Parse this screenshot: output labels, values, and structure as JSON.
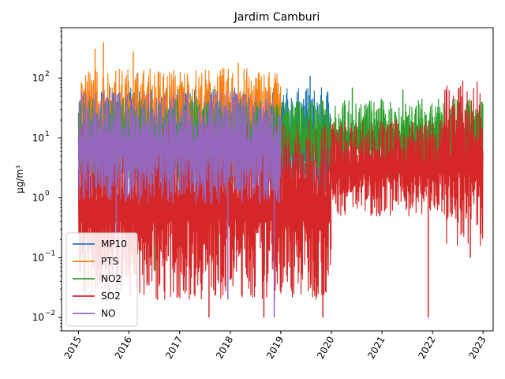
{
  "chart_data": {
    "type": "line",
    "title": "Jardim Camburi",
    "xlabel": "",
    "ylabel": "µg/m³",
    "yscale": "log",
    "ylim": [
      0.006,
      700
    ],
    "xlim": [
      "2014-09-01",
      "2023-03-15"
    ],
    "x_ticks": [
      "2015",
      "2016",
      "2017",
      "2018",
      "2019",
      "2020",
      "2021",
      "2022",
      "2023"
    ],
    "y_ticks": [
      {
        "value": 0.01,
        "base": "10",
        "exp": "−2"
      },
      {
        "value": 0.1,
        "base": "10",
        "exp": "−1"
      },
      {
        "value": 1,
        "base": "10",
        "exp": "0"
      },
      {
        "value": 10,
        "base": "10",
        "exp": "1"
      },
      {
        "value": 100,
        "base": "10",
        "exp": "2"
      }
    ],
    "grid": false,
    "legend": "lower-left",
    "series": [
      {
        "name": "MP10",
        "color": "#1f77b4",
        "segments": [
          {
            "start": "2015-01-01",
            "end": "2019-12-31",
            "low": 1.0,
            "high": 70,
            "spikes": [
              {
                "date": "2016-03-01",
                "value": 120
              },
              {
                "date": "2018-05-01",
                "value": 130
              },
              {
                "date": "2019-08-01",
                "value": 110
              }
            ]
          }
        ]
      },
      {
        "name": "PTS",
        "color": "#ff7f0e",
        "segments": [
          {
            "start": "2015-01-01",
            "end": "2018-12-31",
            "low": 1.5,
            "high": 150,
            "spikes": [
              {
                "date": "2015-07-01",
                "value": 400
              },
              {
                "date": "2015-05-01",
                "value": 310
              },
              {
                "date": "2016-02-01",
                "value": 280
              },
              {
                "date": "2018-03-01",
                "value": 180
              }
            ]
          }
        ]
      },
      {
        "name": "NO2",
        "color": "#2ca02c",
        "segments": [
          {
            "start": "2015-01-01",
            "end": "2022-12-31",
            "low": 2.0,
            "high": 45,
            "spikes": [
              {
                "date": "2016-07-10",
                "value": 0.06
              },
              {
                "date": "2020-06-01",
                "value": 70
              },
              {
                "date": "2021-06-01",
                "value": 65
              }
            ]
          }
        ]
      },
      {
        "name": "SO2",
        "color": "#d62728",
        "segments": [
          {
            "start": "2015-01-01",
            "end": "2019-12-31",
            "low": 0.02,
            "high": 20,
            "spikes": [
              {
                "date": "2017-08-01",
                "value": 0.01
              },
              {
                "date": "2018-09-01",
                "value": 0.01
              },
              {
                "date": "2019-11-01",
                "value": 0.01
              }
            ]
          },
          {
            "start": "2019-12-31",
            "end": "2022-03-15",
            "low": 0.5,
            "high": 20,
            "spikes": [
              {
                "date": "2021-12-01",
                "value": 0.01
              }
            ]
          },
          {
            "start": "2022-03-15",
            "end": "2022-12-31",
            "low": 0.15,
            "high": 90,
            "spikes": [
              {
                "date": "2022-10-01",
                "value": 0.1
              }
            ]
          }
        ]
      },
      {
        "name": "NO",
        "color": "#9467bd",
        "segments": [
          {
            "start": "2015-01-01",
            "end": "2018-12-31",
            "low": 0.8,
            "high": 60,
            "spikes": [
              {
                "date": "2017-12-15",
                "value": 0.02
              },
              {
                "date": "2018-11-15",
                "value": 0.01
              },
              {
                "date": "2015-10-01",
                "value": 0.04
              }
            ]
          }
        ]
      }
    ]
  }
}
